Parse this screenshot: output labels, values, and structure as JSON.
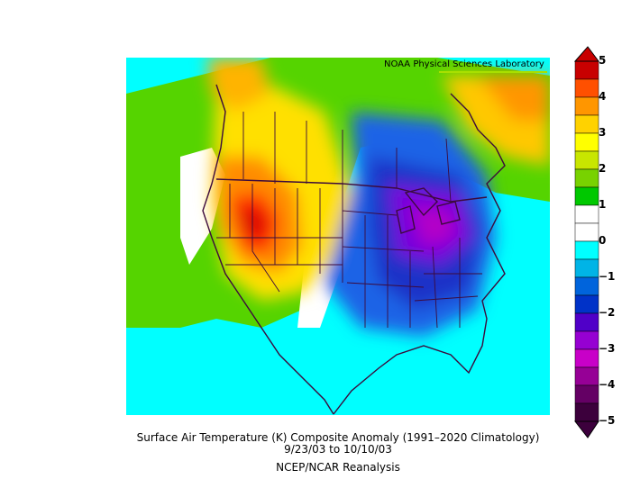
{
  "map": {
    "credit": "NOAA Physical Sciences Laboratory",
    "caption_title": "Surface Air Temperature (K) Composite Anomaly (1991–2020 Climatology)",
    "caption_dates": "9/23/03  to 10/10/03",
    "caption_source": "NCEP/NCAR Reanalysis",
    "region": "North America",
    "colorbar": {
      "ticks": [
        "5",
        "4",
        "3",
        "2",
        "1",
        "0",
        "−1",
        "−2",
        "−3",
        "−4",
        "−5"
      ],
      "colors": [
        "#c80000",
        "#ff5000",
        "#ff9600",
        "#ffd200",
        "#ffff00",
        "#c8e600",
        "#78d200",
        "#00c800",
        "#ffffff",
        "#ffffff",
        "#00ffff",
        "#00b4e6",
        "#0064dc",
        "#0032c8",
        "#5000c8",
        "#9600d2",
        "#c800c8",
        "#960096",
        "#640064",
        "#3c003c"
      ]
    }
  }
}
